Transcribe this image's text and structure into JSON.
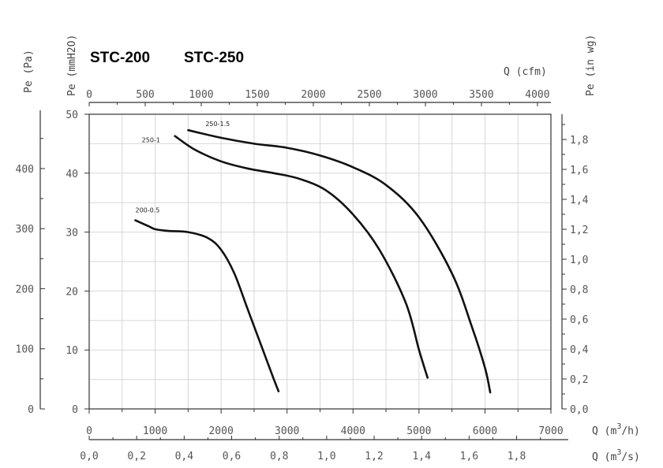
{
  "models": [
    "STC-200",
    "STC-250"
  ],
  "axes": {
    "left_pa_label": "Pe (Pa)",
    "left_mmh2o_label": "Pe (mmH2O)",
    "right_label": "Pe (in wg)",
    "top_label": "Q (cfm)",
    "bottom_m3h_label_main": "Q (m",
    "bottom_m3h_label_end": "/h)",
    "bottom_m3s_label_main": "Q (m",
    "bottom_m3s_label_end": "/s)",
    "superscript": "3"
  },
  "chart_data": {
    "type": "line",
    "x_unit": "m3/h",
    "y_unit": "mmH2O",
    "xlim": [
      0,
      7000
    ],
    "ylim": [
      0,
      50
    ],
    "grid": true,
    "x_ticks_m3h": [
      "0",
      "1000",
      "2000",
      "3000",
      "4000",
      "5000",
      "6000",
      "7000"
    ],
    "x_ticks_m3s": [
      "0,0",
      "0,2",
      "0,4",
      "0,6",
      "0,8",
      "1,0",
      "1,2",
      "1,4",
      "1,6",
      "1,8"
    ],
    "x_ticks_cfm": [
      "0",
      "500",
      "1000",
      "1500",
      "2000",
      "2500",
      "3000",
      "3500",
      "4000"
    ],
    "y_ticks_mmh2o": [
      "0",
      "10",
      "20",
      "30",
      "40",
      "50"
    ],
    "y_ticks_pa": [
      "0",
      "100",
      "200",
      "300",
      "400"
    ],
    "y_ticks_inwg": [
      "0,0",
      "0,2",
      "0,4",
      "0,6",
      "0,8",
      "1,0",
      "1,2",
      "1,4",
      "1,6",
      "1,8"
    ],
    "series": [
      {
        "name": "200-0.5",
        "x": [
          700,
          900,
          1000,
          1200,
          1500,
          1800,
          2000,
          2200,
          2400,
          2600,
          2800,
          2870
        ],
        "y": [
          32,
          31,
          30.5,
          30.2,
          30,
          29,
          27,
          23,
          17,
          11,
          5,
          3
        ]
      },
      {
        "name": "250-1",
        "x": [
          1300,
          1600,
          2000,
          2400,
          2800,
          3200,
          3600,
          4000,
          4400,
          4800,
          5000,
          5130
        ],
        "y": [
          46.3,
          44,
          42,
          40.8,
          40,
          39,
          37,
          33,
          27,
          18,
          10,
          5.3
        ]
      },
      {
        "name": "250-1.5",
        "x": [
          1500,
          2000,
          2500,
          3000,
          3500,
          4000,
          4500,
          5000,
          5500,
          5800,
          6000,
          6080
        ],
        "y": [
          47.3,
          46,
          45,
          44.3,
          43,
          41,
          38,
          32.5,
          23,
          14,
          7,
          2.8
        ]
      }
    ]
  }
}
